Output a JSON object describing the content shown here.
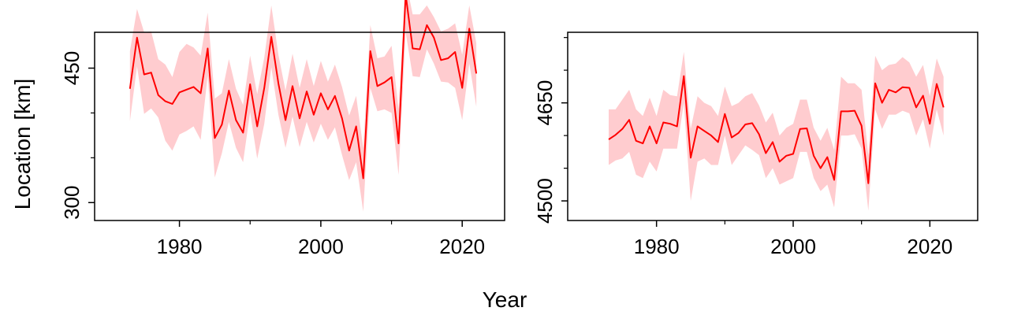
{
  "figure": {
    "ylabel": "Location [km]",
    "xlabel": "Year"
  },
  "chart_data": [
    {
      "type": "line",
      "grid": false,
      "xlim": [
        1968,
        2026
      ],
      "ylim": [
        280,
        490
      ],
      "x_ticks": [
        1980,
        2000,
        2020
      ],
      "x_minor_ticks": [
        1990,
        2010
      ],
      "y_ticks": [
        300,
        450
      ],
      "y_minor_ticks": [
        350,
        400,
        500,
        550
      ],
      "colors": {
        "line": "#ff0000",
        "band": "#ffcccf"
      },
      "series": [
        {
          "x": [
            1973,
            1974,
            1975,
            1976,
            1977,
            1978,
            1979,
            1980,
            1981,
            1982,
            1983,
            1984,
            1985,
            1986,
            1987,
            1988,
            1989,
            1990,
            1991,
            1992,
            1993,
            1994,
            1995,
            1996,
            1997,
            1998,
            1999,
            2000,
            2001,
            2002,
            2003,
            2004,
            2005,
            2006,
            2007,
            2008,
            2009,
            2010,
            2011,
            2012,
            2013,
            2014,
            2015,
            2016,
            2017,
            2018,
            2019,
            2020,
            2021,
            2022
          ],
          "y": [
            427,
            484,
            443,
            445,
            420,
            413,
            410,
            423,
            426,
            429,
            422,
            472,
            372,
            387,
            425,
            392,
            378,
            432,
            385,
            428,
            485,
            433,
            392,
            430,
            394,
            424,
            398,
            422,
            404,
            419,
            394,
            358,
            385,
            327,
            469,
            430,
            434,
            440,
            366,
            532,
            472,
            471,
            498,
            484,
            459,
            461,
            468,
            428,
            494,
            444
          ],
          "lower": [
            391,
            452,
            399,
            405,
            395,
            369,
            358,
            376,
            380,
            385,
            370,
            442,
            328,
            355,
            390,
            361,
            345,
            401,
            349,
            388,
            451,
            398,
            361,
            396,
            362,
            390,
            367,
            388,
            370,
            384,
            353,
            325,
            345,
            290,
            428,
            402,
            404,
            400,
            331,
            490,
            441,
            440,
            471,
            455,
            435,
            434,
            428,
            392,
            455,
            407
          ],
          "upper": [
            469,
            516,
            490,
            491,
            460,
            454,
            440,
            468,
            477,
            473,
            464,
            512,
            416,
            422,
            460,
            427,
            409,
            464,
            421,
            462,
            520,
            465,
            425,
            466,
            428,
            460,
            430,
            458,
            435,
            454,
            429,
            397,
            419,
            361,
            498,
            461,
            463,
            475,
            404,
            548,
            510,
            510,
            520,
            507,
            491,
            494,
            500,
            465,
            520,
            478
          ]
        }
      ]
    },
    {
      "type": "line",
      "grid": false,
      "xlim": [
        1967,
        2027
      ],
      "ylim": [
        4470,
        4758
      ],
      "x_ticks": [
        1980,
        2000,
        2020
      ],
      "x_minor_ticks": [
        1990,
        2010
      ],
      "y_ticks": [
        4500,
        4650
      ],
      "y_minor_ticks": [
        4550,
        4600,
        4700,
        4750
      ],
      "colors": {
        "line": "#ff0000",
        "band": "#ffcccf"
      },
      "series": [
        {
          "x": [
            1973,
            1974,
            1975,
            1976,
            1977,
            1978,
            1979,
            1980,
            1981,
            1982,
            1983,
            1984,
            1985,
            1986,
            1987,
            1988,
            1989,
            1990,
            1991,
            1992,
            1993,
            1994,
            1995,
            1996,
            1997,
            1998,
            1999,
            2000,
            2001,
            2002,
            2003,
            2004,
            2005,
            2006,
            2007,
            2008,
            2009,
            2010,
            2011,
            2012,
            2013,
            2014,
            2015,
            2016,
            2017,
            2018,
            2019,
            2020,
            2021,
            2022
          ],
          "y": [
            4594,
            4601,
            4610,
            4624,
            4592,
            4588,
            4614,
            4588,
            4620,
            4618,
            4614,
            4691,
            4566,
            4614,
            4607,
            4600,
            4590,
            4633,
            4597,
            4604,
            4617,
            4619,
            4602,
            4573,
            4590,
            4560,
            4569,
            4572,
            4610,
            4611,
            4569,
            4550,
            4567,
            4532,
            4637,
            4637,
            4638,
            4615,
            4527,
            4680,
            4650,
            4670,
            4666,
            4674,
            4673,
            4643,
            4661,
            4618,
            4679,
            4643
          ],
          "lower": [
            4555,
            4562,
            4565,
            4575,
            4540,
            4535,
            4560,
            4545,
            4580,
            4580,
            4580,
            4650,
            4500,
            4560,
            4565,
            4555,
            4555,
            4600,
            4555,
            4570,
            4585,
            4578,
            4570,
            4535,
            4550,
            4525,
            4530,
            4535,
            4575,
            4575,
            4535,
            4515,
            4525,
            4490,
            4600,
            4600,
            4602,
            4580,
            4485,
            4640,
            4610,
            4632,
            4632,
            4638,
            4634,
            4600,
            4625,
            4580,
            4640,
            4600
          ],
          "upper": [
            4640,
            4640,
            4655,
            4670,
            4640,
            4630,
            4658,
            4630,
            4670,
            4662,
            4660,
            4728,
            4610,
            4660,
            4650,
            4645,
            4630,
            4675,
            4645,
            4650,
            4660,
            4665,
            4646,
            4620,
            4635,
            4600,
            4612,
            4618,
            4655,
            4655,
            4612,
            4592,
            4612,
            4578,
            4690,
            4680,
            4680,
            4670,
            4570,
            4722,
            4700,
            4708,
            4710,
            4720,
            4712,
            4690,
            4708,
            4660,
            4718,
            4690
          ]
        }
      ]
    }
  ]
}
